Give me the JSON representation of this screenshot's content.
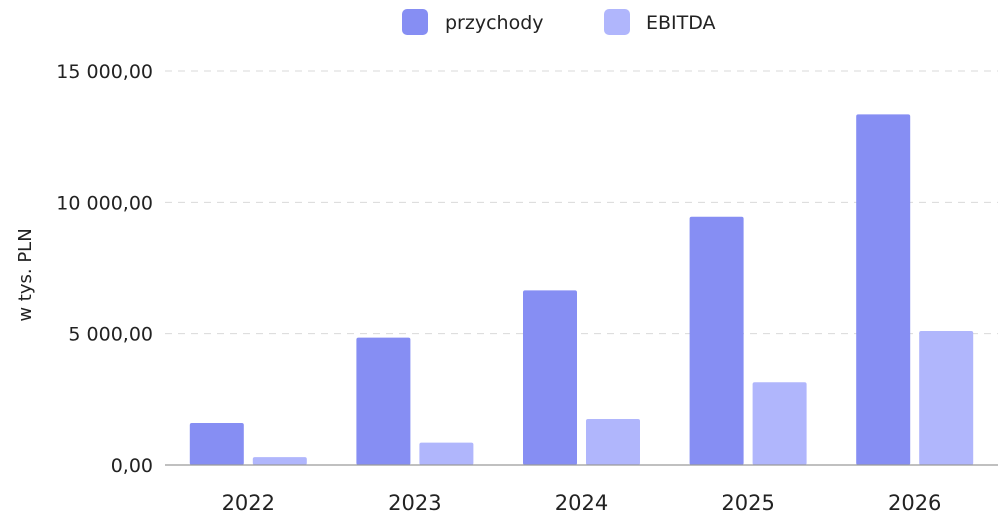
{
  "chart_data": {
    "type": "bar",
    "title": "",
    "xlabel": "",
    "ylabel": "w tys. PLN",
    "categories": [
      "2022",
      "2023",
      "2024",
      "2025",
      "2026"
    ],
    "series": [
      {
        "name": "przychody",
        "color": "#868ef3",
        "values": [
          1600,
          4850,
          6650,
          9450,
          13350
        ]
      },
      {
        "name": "EBITDA",
        "color": "#b0b6fc",
        "values": [
          300,
          850,
          1750,
          3150,
          5100
        ]
      }
    ],
    "ylim": [
      0,
      15000
    ],
    "yticks": [
      {
        "value": 0,
        "label": "0,00"
      },
      {
        "value": 5000,
        "label": "5 000,00"
      },
      {
        "value": 10000,
        "label": "10 000,00"
      },
      {
        "value": 15000,
        "label": "15 000,00"
      }
    ],
    "grid": true,
    "legend_position": "top-center"
  }
}
